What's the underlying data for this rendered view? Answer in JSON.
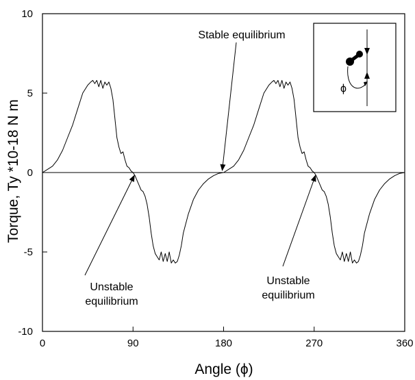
{
  "chart_data": {
    "type": "line",
    "title": "",
    "xlabel": "Angle (ϕ)",
    "ylabel": "Torque, Ty *10-18 N m",
    "xlim": [
      0,
      360
    ],
    "ylim": [
      -10,
      10
    ],
    "x_ticks": [
      0,
      90,
      180,
      270,
      360
    ],
    "x_tick_labels": [
      "0",
      "90",
      "180",
      "270",
      "360"
    ],
    "y_ticks": [
      10,
      5,
      0,
      -5,
      -10
    ],
    "y_tick_labels": [
      "10",
      "5",
      "0",
      "-5",
      "-10"
    ],
    "grid": false,
    "legend": "none",
    "series": [
      {
        "x": [
          0,
          5,
          10,
          15,
          20,
          25,
          30,
          35,
          40,
          45,
          48,
          50,
          52,
          54,
          56,
          58,
          60,
          62,
          64,
          66,
          68,
          70,
          72,
          74,
          76,
          78,
          80,
          82,
          84,
          86,
          88,
          90,
          92,
          94,
          96,
          98,
          100,
          102,
          104,
          106,
          108,
          110,
          112,
          114,
          116,
          118,
          120,
          122,
          124,
          126,
          128,
          130,
          132,
          134,
          136,
          138,
          140,
          145,
          150,
          155,
          160,
          165,
          170,
          175,
          180,
          185,
          190,
          195,
          200,
          205,
          210,
          215,
          220,
          225,
          228,
          230,
          232,
          234,
          236,
          238,
          240,
          242,
          244,
          246,
          248,
          250,
          252,
          254,
          256,
          258,
          260,
          262,
          264,
          266,
          268,
          270,
          272,
          274,
          276,
          278,
          280,
          282,
          284,
          286,
          288,
          290,
          292,
          294,
          296,
          298,
          300,
          302,
          304,
          306,
          308,
          310,
          312,
          314,
          316,
          318,
          320,
          325,
          330,
          335,
          340,
          345,
          350,
          355,
          360
        ],
        "y": [
          0.0,
          0.2,
          0.4,
          0.8,
          1.4,
          2.2,
          3.0,
          4.0,
          5.0,
          5.5,
          5.7,
          5.8,
          5.6,
          5.8,
          5.4,
          5.8,
          5.3,
          5.7,
          5.5,
          5.7,
          5.3,
          4.6,
          3.4,
          2.2,
          1.6,
          1.2,
          1.3,
          0.8,
          0.4,
          0.3,
          0.1,
          0.0,
          -0.2,
          -0.5,
          -0.8,
          -1.1,
          -1.2,
          -1.5,
          -2.0,
          -2.8,
          -3.8,
          -4.6,
          -5.1,
          -5.3,
          -5.5,
          -5.0,
          -5.6,
          -5.1,
          -5.6,
          -5.0,
          -5.7,
          -5.5,
          -5.7,
          -5.6,
          -5.2,
          -4.6,
          -3.8,
          -2.6,
          -1.7,
          -1.1,
          -0.7,
          -0.4,
          -0.2,
          -0.05,
          0.0,
          0.2,
          0.4,
          0.8,
          1.4,
          2.2,
          3.0,
          4.0,
          5.0,
          5.5,
          5.7,
          5.8,
          5.6,
          5.8,
          5.4,
          5.8,
          5.3,
          5.7,
          5.5,
          5.7,
          5.3,
          4.6,
          3.4,
          2.2,
          1.6,
          1.2,
          1.3,
          0.8,
          0.4,
          0.3,
          0.1,
          0.0,
          -0.2,
          -0.5,
          -0.8,
          -1.1,
          -1.2,
          -1.5,
          -2.0,
          -2.8,
          -3.8,
          -4.6,
          -5.1,
          -5.3,
          -5.5,
          -5.0,
          -5.6,
          -5.1,
          -5.6,
          -5.0,
          -5.7,
          -5.5,
          -5.7,
          -5.6,
          -5.2,
          -4.6,
          -3.8,
          -2.6,
          -1.7,
          -1.1,
          -0.7,
          -0.4,
          -0.2,
          -0.05,
          0.0
        ]
      }
    ],
    "zero_line": 0,
    "annotations": [
      {
        "id": "stable",
        "lines": [
          "Stable equilibrium"
        ],
        "target_x": 180,
        "target_y": 0,
        "anchor": "middle"
      },
      {
        "id": "unstable-1",
        "lines": [
          "Unstable",
          "equilibrium"
        ],
        "target_x": 90,
        "target_y": 0,
        "anchor": "middle"
      },
      {
        "id": "unstable-2",
        "lines": [
          "Unstable",
          "equilibrium"
        ],
        "target_x": 270,
        "target_y": 0,
        "anchor": "middle"
      }
    ],
    "inset": {
      "description_icon": "rotating-dumbbell-diagram",
      "angle_symbol": "ϕ"
    }
  }
}
